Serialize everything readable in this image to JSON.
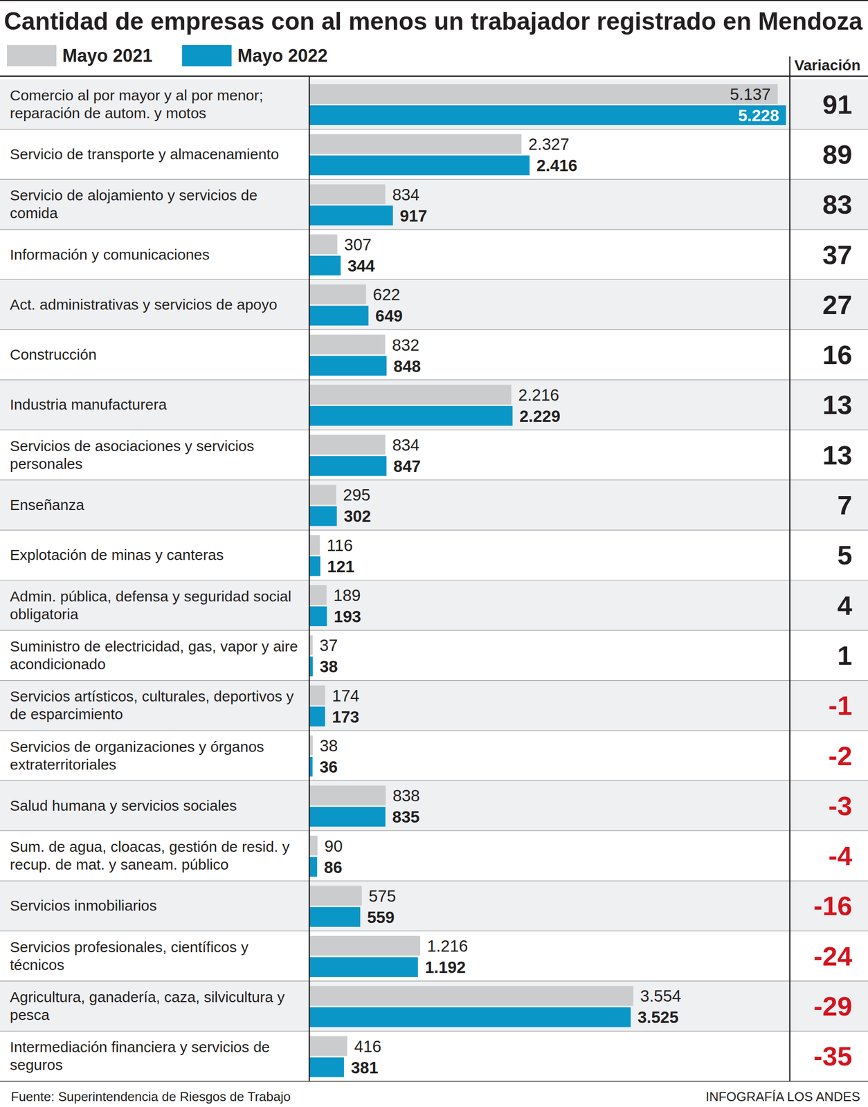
{
  "chart_data": {
    "type": "bar",
    "orientation": "horizontal",
    "title": "Cantidad de empresas con al menos un trabajador registrado en Mendoza",
    "categories": [
      "Comercio al por mayor y al por menor; reparación de autom. y motos",
      "Servicio de transporte y almacenamiento",
      "Servicio de alojamiento y servicios de comida",
      "Información y comunicaciones",
      "Act. administrativas y servicios de apoyo",
      "Construcción",
      "Industria manufacturera",
      "Servicios de asociaciones y servicios personales",
      "Enseñanza",
      "Explotación de minas y canteras",
      "Admin. pública, defensa y seguridad social obligatoria",
      "Suministro de electricidad, gas, vapor y aire acondicionado",
      "Servicios artísticos, culturales, deportivos y de esparcimiento",
      "Servicios de organizaciones y órganos extraterritoriales",
      "Salud humana y servicios sociales",
      "Sum. de agua, cloacas, gestión de resid. y recup. de mat. y saneam. público",
      "Servicios inmobiliarios",
      "Servicios profesionales, científicos y técnicos",
      "Agricultura, ganadería, caza, silvicultura y pesca",
      "Intermediación financiera y servicios de seguros"
    ],
    "series": [
      {
        "name": "Mayo 2021",
        "color": "#cbccce",
        "values": [
          5137,
          2327,
          834,
          307,
          622,
          832,
          2216,
          834,
          295,
          116,
          189,
          37,
          174,
          38,
          838,
          90,
          575,
          1216,
          3554,
          416
        ],
        "value_labels": [
          "5.137",
          "2.327",
          "834",
          "307",
          "622",
          "832",
          "2.216",
          "834",
          "295",
          "116",
          "189",
          "37",
          "174",
          "38",
          "838",
          "90",
          "575",
          "1.216",
          "3.554",
          "416"
        ]
      },
      {
        "name": "Mayo 2022",
        "color": "#0b96c8",
        "values": [
          5228,
          2416,
          917,
          344,
          649,
          848,
          2229,
          847,
          302,
          121,
          193,
          38,
          173,
          36,
          835,
          86,
          559,
          1192,
          3525,
          381
        ],
        "value_labels": [
          "5.228",
          "2.416",
          "917",
          "344",
          "649",
          "848",
          "2.229",
          "847",
          "302",
          "121",
          "193",
          "38",
          "173",
          "36",
          "835",
          "86",
          "559",
          "1.192",
          "3.525",
          "381"
        ]
      }
    ],
    "variation_label": "Variación",
    "variation": [
      91,
      89,
      83,
      37,
      27,
      16,
      13,
      13,
      7,
      5,
      4,
      1,
      -1,
      -2,
      -3,
      -4,
      -16,
      -24,
      -29,
      -35
    ],
    "xlim": [
      0,
      5270
    ],
    "tick_labels": false,
    "data_labels": true,
    "legend": "top-left",
    "source": "Fuente: Superintendencia de Riesgos de Trabajo",
    "credit": "INFOGRAFÍA LOS ANDES"
  }
}
